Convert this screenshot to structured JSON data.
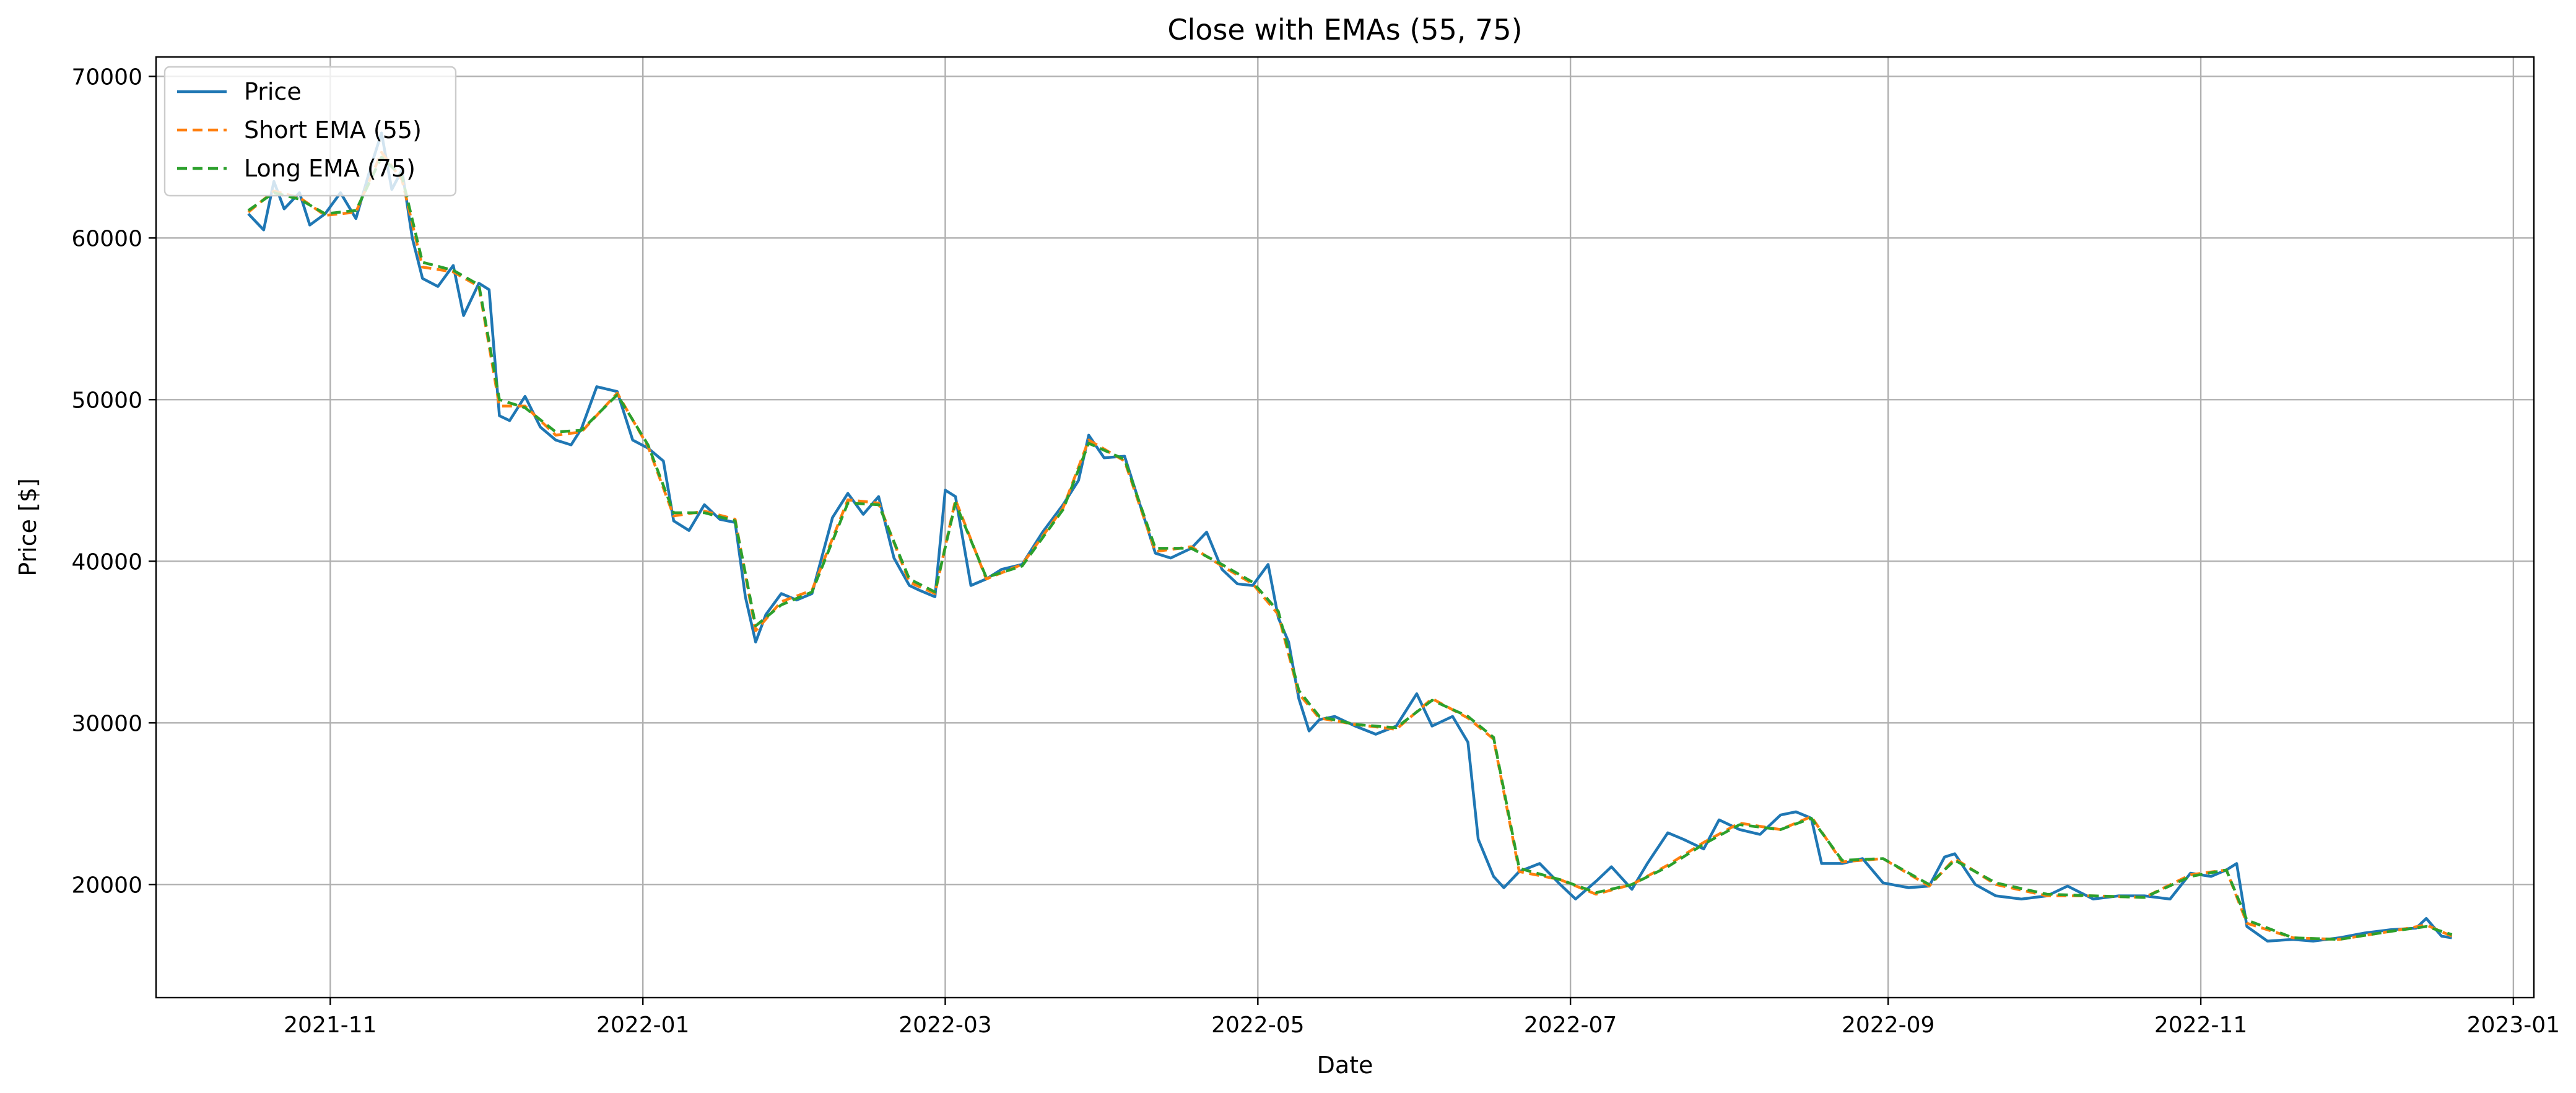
{
  "chart_data": {
    "type": "line",
    "title": "Close with EMAs (55, 75)",
    "xlabel": "Date",
    "ylabel": "Price [$]",
    "x_axis": {
      "type": "date",
      "range": [
        "2021-09-28",
        "2023-01-05"
      ],
      "ticks": [
        "2021-11-01",
        "2022-01-01",
        "2022-03-01",
        "2022-05-01",
        "2022-07-01",
        "2022-09-01",
        "2022-11-01",
        "2023-01-01"
      ],
      "tick_labels": [
        "2021-11",
        "2022-01",
        "2022-03",
        "2022-05",
        "2022-07",
        "2022-09",
        "2022-11",
        "2023-01"
      ]
    },
    "y_axis": {
      "range": [
        13000,
        71200
      ],
      "ticks": [
        20000,
        30000,
        40000,
        50000,
        60000,
        70000
      ],
      "tick_labels": [
        "20000",
        "30000",
        "40000",
        "50000",
        "60000",
        "70000"
      ]
    },
    "grid": true,
    "legend": {
      "position": "top-left",
      "entries": [
        {
          "label": "Price",
          "color": "#1f77b4",
          "style": "solid"
        },
        {
          "label": "Short EMA (55)",
          "color": "#ff7f0e",
          "style": "dashed"
        },
        {
          "label": "Long EMA (75)",
          "color": "#2ca02c",
          "style": "dashed"
        }
      ]
    },
    "series": [
      {
        "name": "Price",
        "color": "#1f77b4",
        "x": [
          "2021-10-16",
          "2021-10-19",
          "2021-10-21",
          "2021-10-23",
          "2021-10-26",
          "2021-10-28",
          "2021-10-31",
          "2021-11-03",
          "2021-11-06",
          "2021-11-09",
          "2021-11-11",
          "2021-11-13",
          "2021-11-15",
          "2021-11-17",
          "2021-11-19",
          "2021-11-22",
          "2021-11-25",
          "2021-11-27",
          "2021-11-30",
          "2021-12-02",
          "2021-12-04",
          "2021-12-06",
          "2021-12-09",
          "2021-12-12",
          "2021-12-15",
          "2021-12-18",
          "2021-12-20",
          "2021-12-23",
          "2021-12-27",
          "2021-12-30",
          "2022-01-02",
          "2022-01-05",
          "2022-01-07",
          "2022-01-10",
          "2022-01-13",
          "2022-01-16",
          "2022-01-19",
          "2022-01-21",
          "2022-01-23",
          "2022-01-25",
          "2022-01-28",
          "2022-01-31",
          "2022-02-03",
          "2022-02-07",
          "2022-02-10",
          "2022-02-13",
          "2022-02-16",
          "2022-02-19",
          "2022-02-22",
          "2022-02-24",
          "2022-02-27",
          "2022-03-01",
          "2022-03-03",
          "2022-03-06",
          "2022-03-09",
          "2022-03-12",
          "2022-03-16",
          "2022-03-20",
          "2022-03-24",
          "2022-03-27",
          "2022-03-29",
          "2022-04-01",
          "2022-04-05",
          "2022-04-08",
          "2022-04-11",
          "2022-04-14",
          "2022-04-18",
          "2022-04-21",
          "2022-04-24",
          "2022-04-27",
          "2022-04-30",
          "2022-05-03",
          "2022-05-05",
          "2022-05-07",
          "2022-05-09",
          "2022-05-11",
          "2022-05-13",
          "2022-05-16",
          "2022-05-20",
          "2022-05-24",
          "2022-05-28",
          "2022-06-01",
          "2022-06-04",
          "2022-06-08",
          "2022-06-11",
          "2022-06-13",
          "2022-06-16",
          "2022-06-18",
          "2022-06-21",
          "2022-06-25",
          "2022-06-29",
          "2022-07-02",
          "2022-07-06",
          "2022-07-09",
          "2022-07-13",
          "2022-07-16",
          "2022-07-20",
          "2022-07-23",
          "2022-07-27",
          "2022-07-30",
          "2022-08-03",
          "2022-08-07",
          "2022-08-11",
          "2022-08-14",
          "2022-08-17",
          "2022-08-19",
          "2022-08-23",
          "2022-08-27",
          "2022-08-31",
          "2022-09-05",
          "2022-09-09",
          "2022-09-12",
          "2022-09-14",
          "2022-09-18",
          "2022-09-22",
          "2022-09-27",
          "2022-10-02",
          "2022-10-06",
          "2022-10-11",
          "2022-10-16",
          "2022-10-21",
          "2022-10-26",
          "2022-10-30",
          "2022-11-03",
          "2022-11-06",
          "2022-11-08",
          "2022-11-10",
          "2022-11-14",
          "2022-11-19",
          "2022-11-23",
          "2022-11-28",
          "2022-12-03",
          "2022-12-08",
          "2022-12-13",
          "2022-12-15",
          "2022-12-18",
          "2022-12-20"
        ],
        "y": [
          61500,
          60500,
          63500,
          61800,
          62800,
          60800,
          61500,
          62800,
          61200,
          64500,
          66500,
          63000,
          64200,
          60000,
          57500,
          57000,
          58300,
          55200,
          57200,
          56800,
          49000,
          48700,
          50200,
          48300,
          47500,
          47200,
          48200,
          50800,
          50500,
          47500,
          47000,
          46200,
          42500,
          41900,
          43500,
          42600,
          42400,
          37800,
          35000,
          36700,
          38000,
          37600,
          38000,
          42700,
          44200,
          42900,
          44000,
          40200,
          38500,
          38200,
          37800,
          44400,
          44000,
          38500,
          38900,
          39500,
          39800,
          41800,
          43500,
          45000,
          47800,
          46400,
          46500,
          43500,
          40500,
          40200,
          40800,
          41800,
          39500,
          38600,
          38500,
          39800,
          36500,
          35000,
          31500,
          29500,
          30200,
          30400,
          29800,
          29300,
          29800,
          31800,
          29800,
          30400,
          28800,
          22800,
          20500,
          19800,
          20800,
          21300,
          20000,
          19100,
          20200,
          21100,
          19700,
          21300,
          23200,
          22800,
          22200,
          24000,
          23400,
          23100,
          24300,
          24500,
          24100,
          21300,
          21300,
          21600,
          20100,
          19800,
          19900,
          21700,
          21900,
          20000,
          19300,
          19100,
          19300,
          19900,
          19100,
          19300,
          19300,
          19100,
          20700,
          20500,
          20900,
          21300,
          17400,
          16500,
          16600,
          16500,
          16700,
          17000,
          17200,
          17300,
          17900,
          16800,
          16700
        ]
      },
      {
        "name": "Short EMA (55)",
        "color": "#ff7f0e",
        "x": [
          "2021-10-16",
          "2021-10-21",
          "2021-10-26",
          "2021-10-31",
          "2021-11-06",
          "2021-11-11",
          "2021-11-15",
          "2021-11-19",
          "2021-11-25",
          "2021-11-30",
          "2021-12-04",
          "2021-12-09",
          "2021-12-15",
          "2021-12-20",
          "2021-12-27",
          "2022-01-02",
          "2022-01-07",
          "2022-01-13",
          "2022-01-19",
          "2022-01-23",
          "2022-01-28",
          "2022-02-03",
          "2022-02-10",
          "2022-02-16",
          "2022-02-22",
          "2022-02-27",
          "2022-03-03",
          "2022-03-09",
          "2022-03-16",
          "2022-03-24",
          "2022-03-29",
          "2022-04-05",
          "2022-04-11",
          "2022-04-18",
          "2022-04-24",
          "2022-04-30",
          "2022-05-05",
          "2022-05-09",
          "2022-05-13",
          "2022-05-20",
          "2022-05-28",
          "2022-06-04",
          "2022-06-11",
          "2022-06-16",
          "2022-06-21",
          "2022-06-29",
          "2022-07-06",
          "2022-07-13",
          "2022-07-20",
          "2022-07-27",
          "2022-08-03",
          "2022-08-11",
          "2022-08-17",
          "2022-08-23",
          "2022-08-31",
          "2022-09-09",
          "2022-09-14",
          "2022-09-22",
          "2022-10-02",
          "2022-10-11",
          "2022-10-21",
          "2022-10-30",
          "2022-11-06",
          "2022-11-10",
          "2022-11-19",
          "2022-11-28",
          "2022-12-08",
          "2022-12-15",
          "2022-12-20"
        ],
        "y": [
          61600,
          62900,
          62500,
          61400,
          61600,
          65300,
          63600,
          58200,
          57900,
          57000,
          49600,
          49600,
          47800,
          48000,
          50400,
          47100,
          42800,
          43100,
          42600,
          35700,
          37500,
          38200,
          43800,
          43600,
          38700,
          38000,
          43800,
          38900,
          39800,
          43300,
          47500,
          46200,
          40600,
          40900,
          39700,
          38600,
          36700,
          31800,
          30300,
          29900,
          29600,
          31500,
          30300,
          29000,
          20800,
          20300,
          19400,
          20000,
          21200,
          22600,
          23800,
          23400,
          24200,
          21400,
          21600,
          19900,
          21600,
          20000,
          19300,
          19300,
          19200,
          20600,
          20900,
          17600,
          16700,
          16600,
          17100,
          17500,
          16800
        ]
      },
      {
        "name": "Long EMA (75)",
        "color": "#2ca02c",
        "x": [
          "2021-10-16",
          "2021-10-21",
          "2021-10-26",
          "2021-10-31",
          "2021-11-06",
          "2021-11-11",
          "2021-11-15",
          "2021-11-19",
          "2021-11-25",
          "2021-11-30",
          "2021-12-04",
          "2021-12-09",
          "2021-12-15",
          "2021-12-20",
          "2021-12-27",
          "2022-01-02",
          "2022-01-07",
          "2022-01-13",
          "2022-01-19",
          "2022-01-23",
          "2022-01-28",
          "2022-02-03",
          "2022-02-10",
          "2022-02-16",
          "2022-02-22",
          "2022-02-27",
          "2022-03-03",
          "2022-03-09",
          "2022-03-16",
          "2022-03-24",
          "2022-03-29",
          "2022-04-05",
          "2022-04-11",
          "2022-04-18",
          "2022-04-24",
          "2022-04-30",
          "2022-05-05",
          "2022-05-09",
          "2022-05-13",
          "2022-05-20",
          "2022-05-28",
          "2022-06-04",
          "2022-06-11",
          "2022-06-16",
          "2022-06-21",
          "2022-06-29",
          "2022-07-06",
          "2022-07-13",
          "2022-07-20",
          "2022-07-27",
          "2022-08-03",
          "2022-08-11",
          "2022-08-17",
          "2022-08-23",
          "2022-08-31",
          "2022-09-09",
          "2022-09-14",
          "2022-09-22",
          "2022-10-02",
          "2022-10-11",
          "2022-10-21",
          "2022-10-30",
          "2022-11-06",
          "2022-11-10",
          "2022-11-19",
          "2022-11-28",
          "2022-12-08",
          "2022-12-15",
          "2022-12-20"
        ],
        "y": [
          61700,
          62800,
          62400,
          61500,
          61700,
          65000,
          63800,
          58500,
          58000,
          57100,
          50000,
          49500,
          48000,
          48100,
          50300,
          47200,
          43000,
          43000,
          42500,
          36000,
          37300,
          38100,
          43600,
          43500,
          38900,
          38100,
          43600,
          39000,
          39700,
          43200,
          47300,
          46300,
          40800,
          40800,
          39800,
          38700,
          36900,
          32000,
          30400,
          29900,
          29700,
          31400,
          30400,
          29100,
          21000,
          20300,
          19500,
          20000,
          21100,
          22500,
          23700,
          23400,
          24100,
          21500,
          21600,
          20000,
          21500,
          20100,
          19400,
          19300,
          19200,
          20500,
          20900,
          17800,
          16700,
          16600,
          17100,
          17400,
          16900
        ]
      }
    ]
  }
}
